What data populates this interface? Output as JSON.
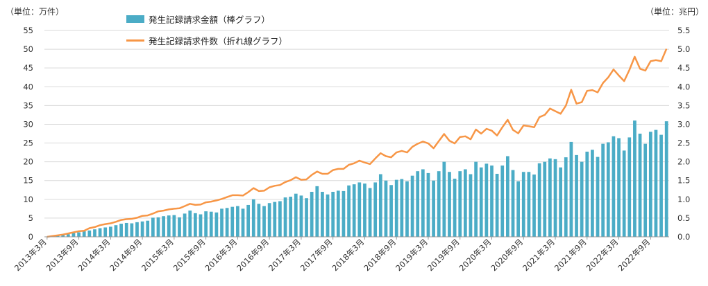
{
  "chart_data": {
    "type": "bar+line",
    "left_unit": "（単位：万件）",
    "right_unit": "（単位：兆円）",
    "legend": {
      "bar_label": "発生記録請求金額（棒グラフ）",
      "line_label": "発生記録請求件数（折れ線グラフ）"
    },
    "left_axis": {
      "min": 0,
      "max": 55,
      "step": 5,
      "ticks": [
        "0",
        "5",
        "10",
        "15",
        "20",
        "25",
        "30",
        "35",
        "40",
        "45",
        "50",
        "55"
      ]
    },
    "right_axis": {
      "min": 0,
      "max": 5.5,
      "step": 0.5,
      "ticks": [
        "0.0",
        "0.5",
        "1.0",
        "1.5",
        "2.0",
        "2.5",
        "3.0",
        "3.5",
        "4.0",
        "4.5",
        "5.0",
        "5.5"
      ]
    },
    "x_tick_labels": [
      "2013年3月",
      "2013年9月",
      "2014年3月",
      "2014年9月",
      "2015年3月",
      "2015年9月",
      "2016年3月",
      "2016年9月",
      "2017年3月",
      "2017年9月",
      "2018年3月",
      "2018年9月",
      "2019年3月",
      "2019年9月",
      "2020年3月",
      "2020年9月",
      "2021年3月",
      "2021年9月",
      "2022年3月",
      "2022年9月"
    ],
    "start_month": "2013年3月",
    "grid": true,
    "colors": {
      "bar": "#4bacc6",
      "line": "#f79646",
      "grid": "#d9d9d9"
    },
    "amount_trillion_yen": [
      0.01,
      0.02,
      0.03,
      0.05,
      0.07,
      0.1,
      0.12,
      0.15,
      0.17,
      0.2,
      0.23,
      0.25,
      0.27,
      0.31,
      0.35,
      0.37,
      0.36,
      0.39,
      0.41,
      0.43,
      0.51,
      0.52,
      0.55,
      0.57,
      0.58,
      0.52,
      0.62,
      0.7,
      0.63,
      0.6,
      0.68,
      0.67,
      0.65,
      0.75,
      0.77,
      0.8,
      0.82,
      0.75,
      0.85,
      1.0,
      0.88,
      0.82,
      0.9,
      0.93,
      0.95,
      1.05,
      1.07,
      1.15,
      1.1,
      1.03,
      1.2,
      1.35,
      1.2,
      1.13,
      1.2,
      1.23,
      1.22,
      1.37,
      1.4,
      1.45,
      1.42,
      1.3,
      1.45,
      1.67,
      1.5,
      1.38,
      1.52,
      1.54,
      1.48,
      1.63,
      1.75,
      1.8,
      1.7,
      1.5,
      1.75,
      2.0,
      1.73,
      1.55,
      1.75,
      1.8,
      1.67,
      2.0,
      1.85,
      1.95,
      1.9,
      1.68,
      1.9,
      2.15,
      1.78,
      1.48,
      1.73,
      1.73,
      1.66,
      1.96,
      2.0,
      2.09,
      2.07,
      1.85,
      2.12,
      2.53,
      2.18,
      2.0,
      2.27,
      2.32,
      2.13,
      2.48,
      2.52,
      2.68,
      2.63,
      2.3,
      2.65,
      3.1,
      2.75,
      2.48,
      2.8,
      2.85,
      2.72,
      3.08
    ],
    "count_ten_thousand": [
      0,
      0.2,
      0.4,
      0.6,
      0.9,
      1.2,
      1.5,
      1.6,
      2.3,
      2.6,
      3.1,
      3.4,
      3.6,
      4.0,
      4.5,
      4.7,
      4.8,
      5.1,
      5.6,
      5.7,
      6.2,
      6.8,
      7.0,
      7.3,
      7.5,
      7.6,
      8.2,
      8.8,
      8.5,
      8.6,
      9.2,
      9.4,
      9.7,
      10.1,
      10.6,
      11.1,
      11.1,
      11.0,
      11.9,
      13.0,
      12.2,
      12.3,
      13.2,
      13.6,
      13.8,
      14.6,
      15.1,
      15.9,
      15.2,
      15.3,
      16.5,
      17.4,
      16.8,
      16.8,
      17.8,
      18.1,
      18.1,
      19.2,
      19.6,
      20.3,
      19.8,
      19.4,
      20.9,
      22.3,
      21.5,
      21.2,
      22.5,
      22.9,
      22.5,
      24.0,
      24.8,
      25.4,
      24.9,
      23.6,
      25.5,
      27.4,
      25.6,
      24.9,
      26.6,
      26.8,
      26.0,
      28.6,
      27.5,
      28.8,
      28.3,
      27.0,
      29.2,
      31.2,
      28.5,
      27.6,
      29.7,
      29.5,
      29.2,
      31.9,
      32.5,
      34.2,
      33.5,
      32.8,
      35.0,
      39.2,
      35.5,
      35.9,
      38.9,
      39.1,
      38.5,
      41.0,
      42.5,
      44.6,
      43.0,
      41.5,
      44.5,
      48.0,
      44.8,
      44.3,
      46.8,
      47.1,
      46.8,
      50.1
    ]
  }
}
